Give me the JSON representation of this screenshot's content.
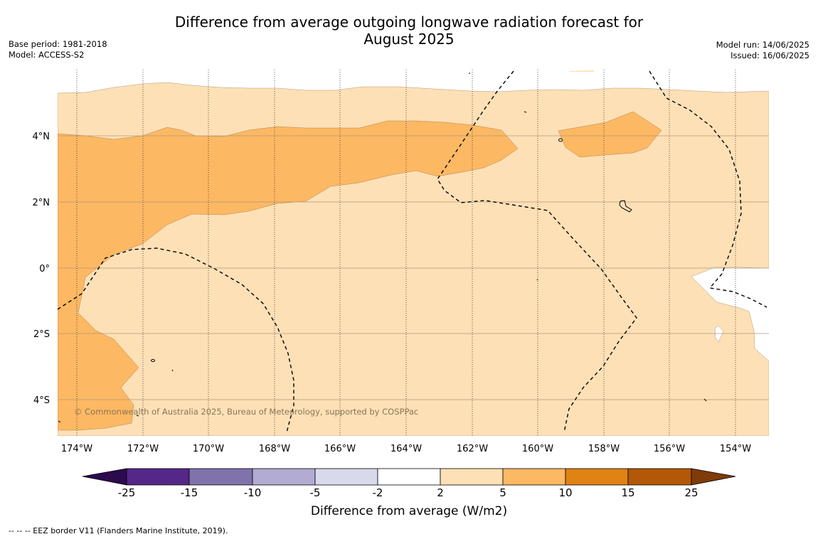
{
  "title_line1": "Difference from average outgoing longwave radiation forecast for",
  "title_line2": "August 2025",
  "base_period": "Base period: 1981-2018",
  "model": "Model: ACCESS-S2",
  "model_run": "Model run: 14/06/2025",
  "issued": "Issued: 16/06/2025",
  "copyright": "© Commonwealth of Australia 2025, Bureau of Meteorology, supported by COSPPac",
  "longitude_labels": [
    "174°W",
    "172°W",
    "170°W",
    "168°W",
    "166°W",
    "164°W",
    "162°W",
    "160°W",
    "158°W",
    "156°W",
    "154°W"
  ],
  "latitude_labels": [
    "4°N",
    "2°N",
    "0°",
    "2°S",
    "4°S"
  ],
  "colorbar": {
    "tick_labels": [
      "-25",
      "-15",
      "-10",
      "-5",
      "-2",
      "2",
      "5",
      "10",
      "15",
      "25"
    ],
    "colors": [
      "#2d0a4e",
      "#542788",
      "#8073ac",
      "#b2abd2",
      "#d8daeb",
      "#ffffff",
      "#fee0b6",
      "#fdb863",
      "#e08214",
      "#b35806",
      "#7f3b08"
    ],
    "label": "Difference from average (W/m2)"
  },
  "footnote": "-- -- -- EEZ border V11 (Flanders Marine Institute, 2019)."
}
